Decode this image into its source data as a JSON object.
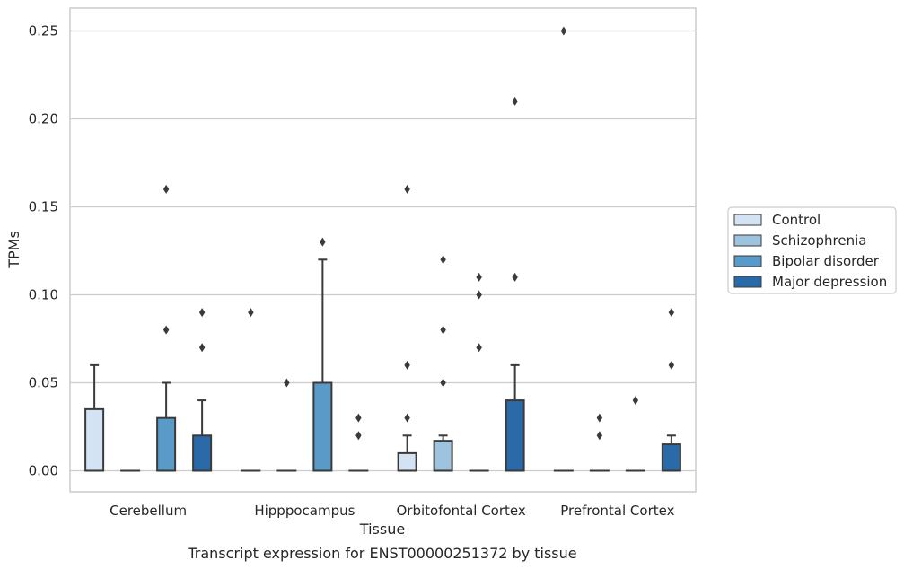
{
  "chart_data": {
    "type": "box",
    "xlabel": "Tissue",
    "ylabel": "TPMs",
    "caption": "Transcript expression for ENST00000251372 by tissue",
    "categories": [
      "Cerebellum",
      "Hipppocampus",
      "Orbitofontal Cortex",
      "Prefrontal Cortex"
    ],
    "ylim": [
      -0.012,
      0.263
    ],
    "yticks": [
      0.0,
      0.05,
      0.1,
      0.15,
      0.2,
      0.25
    ],
    "ytick_labels": [
      "0.00",
      "0.05",
      "0.10",
      "0.15",
      "0.20",
      "0.25"
    ],
    "grid": "horizontal",
    "legend_position": "right",
    "series": [
      {
        "name": "Control",
        "color": "#d3e3f3",
        "boxes": [
          {
            "q1": 0,
            "median": 0,
            "q3": 0.035,
            "whislo": 0,
            "whishi": 0.06,
            "fliers": []
          },
          {
            "q1": 0,
            "median": 0,
            "q3": 0,
            "whislo": 0,
            "whishi": 0,
            "fliers": [
              0.09
            ]
          },
          {
            "q1": 0,
            "median": 0,
            "q3": 0.01,
            "whislo": 0,
            "whishi": 0.02,
            "fliers": [
              0.03,
              0.06,
              0.16
            ]
          },
          {
            "q1": 0,
            "median": 0,
            "q3": 0,
            "whislo": 0,
            "whishi": 0,
            "fliers": [
              0.25
            ]
          }
        ]
      },
      {
        "name": "Schizophrenia",
        "color": "#9dc3de",
        "boxes": [
          {
            "q1": 0,
            "median": 0,
            "q3": 0,
            "whislo": 0,
            "whishi": 0,
            "fliers": []
          },
          {
            "q1": 0,
            "median": 0,
            "q3": 0,
            "whislo": 0,
            "whishi": 0,
            "fliers": [
              0.05
            ]
          },
          {
            "q1": 0,
            "median": 0,
            "q3": 0.017,
            "whislo": 0,
            "whishi": 0.02,
            "fliers": [
              0.05,
              0.08,
              0.12
            ]
          },
          {
            "q1": 0,
            "median": 0,
            "q3": 0,
            "whislo": 0,
            "whishi": 0,
            "fliers": [
              0.02,
              0.03
            ]
          }
        ]
      },
      {
        "name": "Bipolar disorder",
        "color": "#5a9ac8",
        "boxes": [
          {
            "q1": 0,
            "median": 0,
            "q3": 0.03,
            "whislo": 0,
            "whishi": 0.05,
            "fliers": [
              0.08,
              0.16
            ]
          },
          {
            "q1": 0,
            "median": 0,
            "q3": 0.05,
            "whislo": 0,
            "whishi": 0.12,
            "fliers": [
              0.13
            ]
          },
          {
            "q1": 0,
            "median": 0,
            "q3": 0,
            "whislo": 0,
            "whishi": 0,
            "fliers": [
              0.07,
              0.1,
              0.11
            ]
          },
          {
            "q1": 0,
            "median": 0,
            "q3": 0,
            "whislo": 0,
            "whishi": 0,
            "fliers": [
              0.04
            ]
          }
        ]
      },
      {
        "name": "Major depression",
        "color": "#2a6aa8",
        "boxes": [
          {
            "q1": 0,
            "median": 0,
            "q3": 0.02,
            "whislo": 0,
            "whishi": 0.04,
            "fliers": [
              0.07,
              0.09
            ]
          },
          {
            "q1": 0,
            "median": 0,
            "q3": 0,
            "whislo": 0,
            "whishi": 0,
            "fliers": [
              0.02,
              0.03
            ]
          },
          {
            "q1": 0,
            "median": 0,
            "q3": 0.04,
            "whislo": 0,
            "whishi": 0.06,
            "fliers": [
              0.11,
              0.21
            ]
          },
          {
            "q1": 0,
            "median": 0,
            "q3": 0.015,
            "whislo": 0,
            "whishi": 0.02,
            "fliers": [
              0.06,
              0.09
            ]
          }
        ]
      }
    ]
  }
}
